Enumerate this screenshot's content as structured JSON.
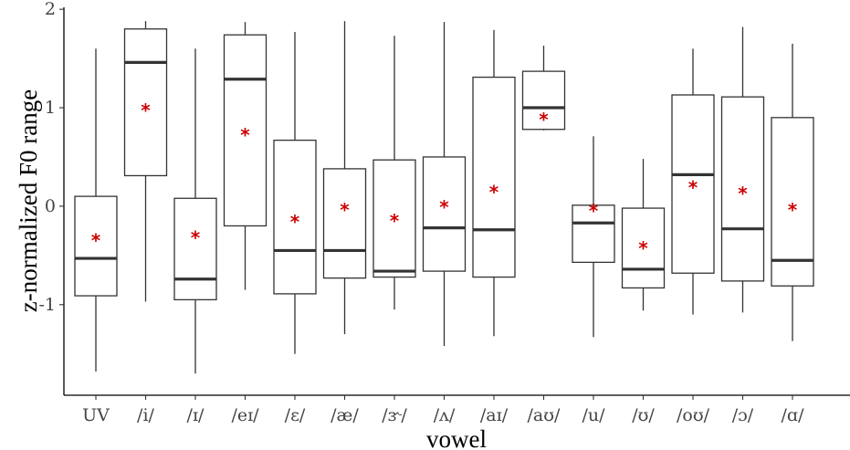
{
  "chart_data": {
    "type": "boxplot",
    "xlabel": "vowel",
    "ylabel": "z-normalized F0 range",
    "ylim": [
      -1.92,
      2.02
    ],
    "yticks": [
      -1,
      0,
      1,
      2
    ],
    "mean_marker": "*",
    "mean_color": "#cc0000",
    "grid": false,
    "categories": [
      "UV",
      "/i/",
      "/ɪ/",
      "/eɪ/",
      "/ɛ/",
      "/æ/",
      "/ɝ/",
      "/ʌ/",
      "/aɪ/",
      "/aʊ/",
      "/u/",
      "/ʊ/",
      "/oʊ/",
      "/ɔ/",
      "/ɑ/"
    ],
    "boxes": [
      {
        "whisker_low": -1.68,
        "q1": -0.91,
        "median": -0.53,
        "q3": 0.1,
        "whisker_high": 1.6,
        "mean": -0.34
      },
      {
        "whisker_low": -0.97,
        "q1": 0.31,
        "median": 1.46,
        "q3": 1.8,
        "whisker_high": 1.88,
        "mean": 0.98
      },
      {
        "whisker_low": -1.7,
        "q1": -0.95,
        "median": -0.74,
        "q3": 0.08,
        "whisker_high": 1.6,
        "mean": -0.31
      },
      {
        "whisker_low": -0.85,
        "q1": -0.2,
        "median": 1.29,
        "q3": 1.74,
        "whisker_high": 1.87,
        "mean": 0.73
      },
      {
        "whisker_low": -1.5,
        "q1": -0.89,
        "median": -0.45,
        "q3": 0.67,
        "whisker_high": 1.77,
        "mean": -0.15
      },
      {
        "whisker_low": -1.3,
        "q1": -0.73,
        "median": -0.45,
        "q3": 0.38,
        "whisker_high": 1.88,
        "mean": -0.03
      },
      {
        "whisker_low": -1.05,
        "q1": -0.72,
        "median": -0.66,
        "q3": 0.47,
        "whisker_high": 1.73,
        "mean": -0.14
      },
      {
        "whisker_low": -1.42,
        "q1": -0.66,
        "median": -0.22,
        "q3": 0.5,
        "whisker_high": 1.87,
        "mean": 0.0
      },
      {
        "whisker_low": -1.32,
        "q1": -0.72,
        "median": -0.24,
        "q3": 1.31,
        "whisker_high": 1.79,
        "mean": 0.15
      },
      {
        "whisker_low": 0.77,
        "q1": 0.78,
        "median": 1.0,
        "q3": 1.37,
        "whisker_high": 1.63,
        "mean": 0.89
      },
      {
        "whisker_low": -1.33,
        "q1": -0.57,
        "median": -0.17,
        "q3": 0.01,
        "whisker_high": 0.71,
        "mean": -0.04
      },
      {
        "whisker_low": -1.06,
        "q1": -0.83,
        "median": -0.64,
        "q3": -0.02,
        "whisker_high": 0.48,
        "mean": -0.42
      },
      {
        "whisker_low": -1.1,
        "q1": -0.68,
        "median": 0.32,
        "q3": 1.13,
        "whisker_high": 1.6,
        "mean": 0.2
      },
      {
        "whisker_low": -1.08,
        "q1": -0.76,
        "median": -0.23,
        "q3": 1.11,
        "whisker_high": 1.82,
        "mean": 0.14
      },
      {
        "whisker_low": -1.37,
        "q1": -0.81,
        "median": -0.55,
        "q3": 0.9,
        "whisker_high": 1.65,
        "mean": -0.03
      }
    ]
  }
}
